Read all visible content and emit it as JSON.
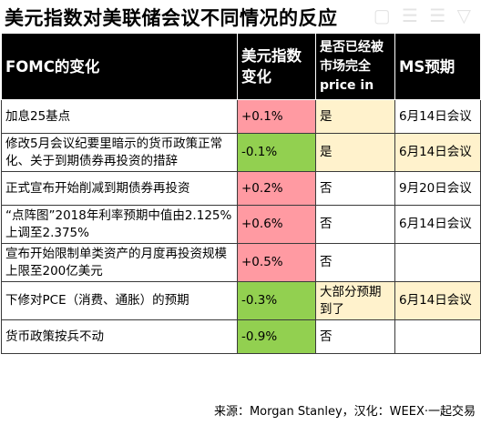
{
  "title": "美元指数对美联储会议不同情况的反应",
  "watermark": "▢  ☰ ☰  ▽",
  "table": {
    "headers": {
      "event": "FOMC的变化",
      "change": "美元指数变化",
      "priced_in": "是否已经被市场完全price in",
      "ms_forecast": "MS预期"
    },
    "rows": [
      {
        "event": "加息25基点",
        "change": "+0.1%",
        "priced_in": "是",
        "ms_forecast": "6月14日会议"
      },
      {
        "event": "修改5月会议纪要里暗示的货币政策正常化、关于到期债券再投资的措辞",
        "change": "-0.1%",
        "priced_in": "是",
        "ms_forecast": "6月14日会议"
      },
      {
        "event": "正式宣布开始削减到期债券再投资",
        "change": "+0.2%",
        "priced_in": "否",
        "ms_forecast": "9月20日会议"
      },
      {
        "event": "“点阵图”2018年利率预期中值由2.125%上调至2.375%",
        "change": "+0.6%",
        "priced_in": "否",
        "ms_forecast": "6月14日会议"
      },
      {
        "event": "宣布开始限制单类资产的月度再投资规模上限至200亿美元",
        "change": "+0.5%",
        "priced_in": "否",
        "ms_forecast": ""
      },
      {
        "event": "下修对PCE（消费、通胀）的预期",
        "change": "-0.3%",
        "priced_in": "大部分预期到了",
        "ms_forecast": "6月14日会议"
      },
      {
        "event": "货币政策按兵不动",
        "change": "-0.9%",
        "priced_in": "否",
        "ms_forecast": ""
      }
    ]
  },
  "source": "来源：Morgan Stanley，汉化：WEEX·一起交易",
  "colors": {
    "header_bg": "#000000",
    "positive": "#ff9aa2",
    "negative": "#92d050",
    "priced_yes": "#fff2cc"
  }
}
